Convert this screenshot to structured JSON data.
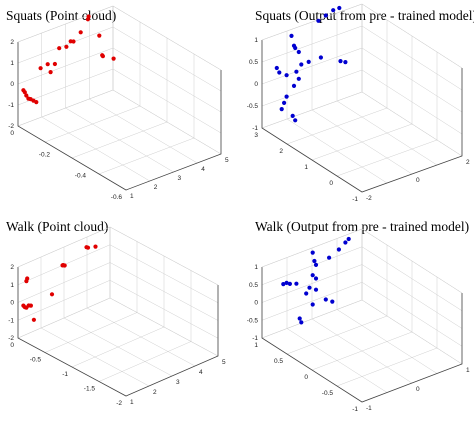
{
  "chart_data": [
    {
      "type": "scatter3d",
      "title": "Squats (Point cloud)",
      "color": "#e00000",
      "z_ticks": [
        "2",
        "1",
        "0",
        "-1",
        "-2"
      ],
      "y_ticks": [
        "0",
        "-0.2",
        "-0.4",
        "-0.6"
      ],
      "x_ticks": [
        "1",
        "2",
        "3",
        "4",
        "5"
      ],
      "points": [
        {
          "x": 0.0,
          "y": -0.05,
          "z": -0.1
        },
        {
          "x": 0.1,
          "y": -0.05,
          "z": -0.2
        },
        {
          "x": 0.2,
          "y": -0.05,
          "z": -0.35
        },
        {
          "x": 0.35,
          "y": -0.05,
          "z": -0.5
        },
        {
          "x": 0.5,
          "y": -0.05,
          "z": -0.55
        },
        {
          "x": 0.7,
          "y": -0.05,
          "z": -0.65
        },
        {
          "x": 0.9,
          "y": -0.05,
          "z": -0.75
        },
        {
          "x": 1.2,
          "y": -0.05,
          "z": 0.5
        },
        {
          "x": 1.7,
          "y": -0.05,
          "z": 0.55
        },
        {
          "x": 1.9,
          "y": -0.05,
          "z": 0.2
        },
        {
          "x": 2.2,
          "y": -0.05,
          "z": 0.45
        },
        {
          "x": 2.5,
          "y": -0.05,
          "z": 1.0
        },
        {
          "x": 3.0,
          "y": -0.05,
          "z": 0.95
        },
        {
          "x": 3.3,
          "y": -0.05,
          "z": 1.1
        },
        {
          "x": 3.5,
          "y": -0.05,
          "z": 1.05
        },
        {
          "x": 4.0,
          "y": -0.05,
          "z": 1.3
        },
        {
          "x": 4.5,
          "y": -0.05,
          "z": 1.7
        },
        {
          "x": 4.55,
          "y": -0.05,
          "z": 1.8
        },
        {
          "x": 5.3,
          "y": -0.05,
          "z": 0.9
        },
        {
          "x": 5.5,
          "y": -0.05,
          "z": 0.1
        },
        {
          "x": 5.55,
          "y": -0.05,
          "z": 0.05
        },
        {
          "x": 6.3,
          "y": -0.05,
          "z": -0.2
        }
      ]
    },
    {
      "type": "scatter3d",
      "title": "Squats (Output from pre - trained model)",
      "color": "#0000d0",
      "z_ticks": [
        "1",
        "0.5",
        "0",
        "-0.5",
        "-1"
      ],
      "y_ticks": [
        "3",
        "2",
        "1",
        "0",
        "-1"
      ],
      "x_ticks": [
        "-2",
        "0",
        "2"
      ],
      "points": [
        {
          "x": -1.0,
          "y": 0,
          "z": 0.8
        },
        {
          "x": -0.9,
          "y": 0,
          "z": 0.6
        },
        {
          "x": -0.85,
          "y": 0,
          "z": 0.55
        },
        {
          "x": -0.7,
          "y": 0,
          "z": 0.45
        },
        {
          "x": -1.6,
          "y": 0,
          "z": 0.3
        },
        {
          "x": -1.5,
          "y": 0,
          "z": 0.2
        },
        {
          "x": -1.2,
          "y": 0,
          "z": 0.1
        },
        {
          "x": -0.8,
          "y": 0,
          "z": 0.1
        },
        {
          "x": -0.6,
          "y": 0,
          "z": 0.2
        },
        {
          "x": -0.3,
          "y": 0,
          "z": 0.2
        },
        {
          "x": -0.7,
          "y": 0,
          "z": -0.05
        },
        {
          "x": -0.9,
          "y": 0,
          "z": -0.15
        },
        {
          "x": -1.2,
          "y": 0,
          "z": -0.3
        },
        {
          "x": -1.3,
          "y": 0,
          "z": -0.4
        },
        {
          "x": -1.4,
          "y": 0,
          "z": -0.5
        },
        {
          "x": -0.95,
          "y": 0,
          "z": -0.7
        },
        {
          "x": -0.85,
          "y": 0,
          "z": -0.8
        },
        {
          "x": 0.1,
          "y": 0,
          "z": 0.9
        },
        {
          "x": 0.4,
          "y": 0,
          "z": 0.95
        },
        {
          "x": 0.7,
          "y": 0,
          "z": 1.0
        },
        {
          "x": 0.95,
          "y": 0,
          "z": 1.0
        },
        {
          "x": 0.2,
          "y": 0,
          "z": 0.2
        },
        {
          "x": 1.0,
          "y": 0,
          "z": 0.0
        },
        {
          "x": 1.2,
          "y": 0,
          "z": -0.05
        }
      ]
    },
    {
      "type": "scatter3d",
      "title": "Walk (Point cloud)",
      "color": "#e00000",
      "z_ticks": [
        "2",
        "1",
        "0",
        "-1",
        "-2"
      ],
      "y_ticks": [
        "0",
        "-0.5",
        "-1",
        "-1.5",
        "-2"
      ],
      "x_ticks": [
        "1",
        "2",
        "3",
        "4",
        "5"
      ],
      "points": [
        {
          "x": 0.2,
          "y": 0,
          "z": 1.1
        },
        {
          "x": 0.25,
          "y": 0,
          "z": 1.2
        },
        {
          "x": 0.0,
          "y": 0,
          "z": 0.05
        },
        {
          "x": 0.1,
          "y": 0,
          "z": -0.05
        },
        {
          "x": 0.2,
          "y": 0,
          "z": -0.1
        },
        {
          "x": 0.35,
          "y": 0,
          "z": -0.05
        },
        {
          "x": 0.5,
          "y": 0,
          "z": -0.1
        },
        {
          "x": 0.7,
          "y": 0,
          "z": -0.8
        },
        {
          "x": 1.9,
          "y": 0,
          "z": 0.0
        },
        {
          "x": 2.6,
          "y": 0,
          "z": 1.1
        },
        {
          "x": 2.65,
          "y": 0,
          "z": 1.1
        },
        {
          "x": 2.75,
          "y": 0,
          "z": 1.05
        },
        {
          "x": 4.2,
          "y": 0,
          "z": 1.45
        },
        {
          "x": 4.3,
          "y": 0,
          "z": 1.4
        },
        {
          "x": 4.8,
          "y": 0,
          "z": 1.3
        }
      ]
    },
    {
      "type": "scatter3d",
      "title": "Walk (Output from pre - trained model)",
      "color": "#0000d0",
      "z_ticks": [
        "1",
        "0.5",
        "0",
        "-0.5",
        "-1"
      ],
      "y_ticks": [
        "1",
        "0.5",
        "0",
        "-0.5",
        "-1"
      ],
      "x_ticks": [
        "-1",
        "0",
        "1"
      ],
      "points": [
        {
          "x": -1.5,
          "y": 0,
          "z": 0.35
        },
        {
          "x": -1.4,
          "y": 0,
          "z": 0.35
        },
        {
          "x": -1.3,
          "y": 0,
          "z": 0.3
        },
        {
          "x": -1.1,
          "y": 0,
          "z": 0.25
        },
        {
          "x": -0.6,
          "y": 0,
          "z": 0.8
        },
        {
          "x": -0.55,
          "y": 0,
          "z": 0.6
        },
        {
          "x": -0.5,
          "y": 0,
          "z": 0.5
        },
        {
          "x": -0.6,
          "y": 0,
          "z": 0.3
        },
        {
          "x": -0.5,
          "y": 0,
          "z": 0.2
        },
        {
          "x": -0.7,
          "y": 0,
          "z": 0.05
        },
        {
          "x": -0.8,
          "y": 0,
          "z": -0.05
        },
        {
          "x": -0.5,
          "y": 0,
          "z": -0.05
        },
        {
          "x": -0.6,
          "y": 0,
          "z": -0.35
        },
        {
          "x": -1.0,
          "y": 0,
          "z": -0.55
        },
        {
          "x": -0.95,
          "y": 0,
          "z": -0.65
        },
        {
          "x": -0.2,
          "y": 0,
          "z": -0.35
        },
        {
          "x": 0.0,
          "y": 0,
          "z": -0.45
        },
        {
          "x": -0.1,
          "y": 0,
          "z": 0.55
        },
        {
          "x": 0.2,
          "y": 0,
          "z": 0.65
        },
        {
          "x": 0.4,
          "y": 0,
          "z": 0.75
        },
        {
          "x": 0.5,
          "y": 0,
          "z": 0.8
        }
      ]
    }
  ]
}
